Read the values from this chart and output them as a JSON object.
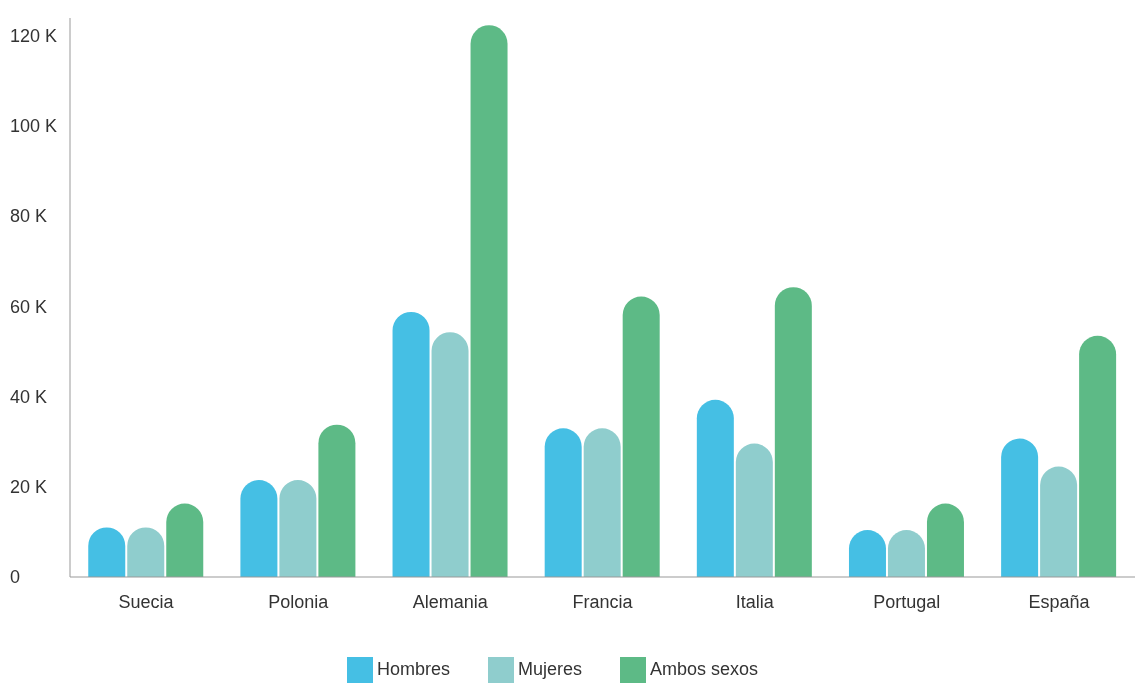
{
  "chart_data": {
    "type": "bar",
    "categories": [
      "Suecia",
      "Polonia",
      "Alemania",
      "Francia",
      "Italia",
      "Portugal",
      "España"
    ],
    "series": [
      {
        "name": "Hombres",
        "color": "#45bfe4",
        "values": [
          11,
          21.5,
          58.8,
          33,
          39.3,
          10.4,
          30.7
        ]
      },
      {
        "name": "Mujeres",
        "color": "#8fcdcd",
        "values": [
          11,
          21.5,
          54.3,
          33,
          29.6,
          10.4,
          24.5
        ]
      },
      {
        "name": "Ambos sexos",
        "color": "#5dba86",
        "values": [
          16.3,
          33.8,
          122.4,
          62.2,
          64.3,
          16.3,
          53.5
        ]
      }
    ],
    "ylim": [
      0,
      124
    ],
    "yticks": [
      {
        "value": 0,
        "label": "0"
      },
      {
        "value": 20,
        "label": "20 K"
      },
      {
        "value": 40,
        "label": "40 K"
      },
      {
        "value": 60,
        "label": "60 K"
      },
      {
        "value": 80,
        "label": "80 K"
      },
      {
        "value": 100,
        "label": "100 K"
      },
      {
        "value": 120,
        "label": "120 K"
      }
    ],
    "grid": false,
    "legend": "bottom"
  }
}
